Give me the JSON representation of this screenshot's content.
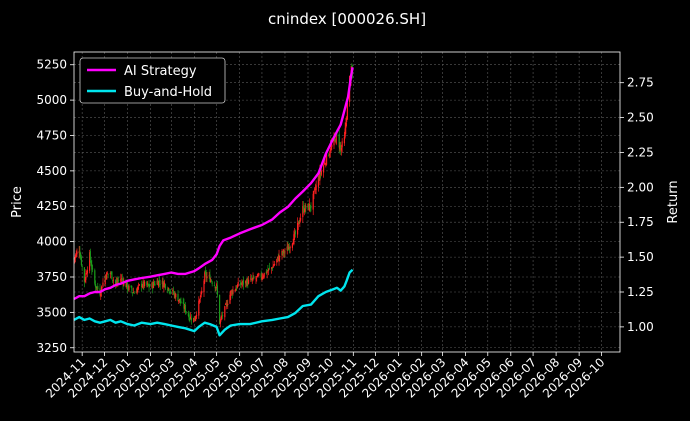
{
  "chart_data": {
    "type": "line",
    "title": "cnindex [000026.SH]",
    "ylabel": "Price",
    "y2label": "Return",
    "grid": true,
    "legend_position": "top-left",
    "price_ylim": [
      3220,
      5340
    ],
    "return_ylim": [
      0.82,
      2.97
    ],
    "price_ticks": [
      3250,
      3500,
      3750,
      4000,
      4250,
      4500,
      4750,
      5000,
      5250
    ],
    "price_tick_labels": [
      "3250",
      "3500",
      "3750",
      "4000",
      "4250",
      "4500",
      "4750",
      "5000",
      "5250"
    ],
    "return_ticks": [
      1.0,
      1.25,
      1.5,
      1.75,
      2.0,
      2.25,
      2.5,
      2.75
    ],
    "return_tick_labels": [
      "1.00",
      "1.25",
      "1.50",
      "1.75",
      "2.00",
      "2.25",
      "2.50",
      "2.75"
    ],
    "x_tick_labels": [
      "2024-11",
      "2024-12",
      "2025-01",
      "2025-02",
      "2025-03",
      "2025-04",
      "2025-05",
      "2025-06",
      "2025-07",
      "2025-08",
      "2025-09",
      "2025-10",
      "2025-11",
      "2025-12",
      "2026-01",
      "2026-02",
      "2026-03",
      "2026-04",
      "2026-05",
      "2026-06",
      "2026-07",
      "2026-08",
      "2026-09",
      "2026-10"
    ],
    "x_range": [
      "2024-10-21",
      "2026-10-26"
    ],
    "candle_up_color": "#ff2020",
    "candle_down_color": "#1a9a1a",
    "price_anchors": [
      [
        "2024-10-21",
        3880
      ],
      [
        "2024-10-28",
        3950
      ],
      [
        "2024-11-04",
        3720
      ],
      [
        "2024-11-11",
        3900
      ],
      [
        "2024-11-18",
        3700
      ],
      [
        "2024-11-25",
        3640
      ],
      [
        "2024-12-02",
        3760
      ],
      [
        "2024-12-09",
        3780
      ],
      [
        "2024-12-16",
        3700
      ],
      [
        "2024-12-23",
        3740
      ],
      [
        "2025-01-01",
        3680
      ],
      [
        "2025-01-10",
        3640
      ],
      [
        "2025-01-20",
        3700
      ],
      [
        "2025-02-01",
        3680
      ],
      [
        "2025-02-10",
        3720
      ],
      [
        "2025-02-20",
        3700
      ],
      [
        "2025-03-01",
        3650
      ],
      [
        "2025-03-10",
        3600
      ],
      [
        "2025-03-20",
        3520
      ],
      [
        "2025-03-25",
        3470
      ],
      [
        "2025-04-01",
        3450
      ],
      [
        "2025-04-07",
        3560
      ],
      [
        "2025-04-11",
        3640
      ],
      [
        "2025-04-15",
        3760
      ],
      [
        "2025-04-22",
        3740
      ],
      [
        "2025-05-01",
        3680
      ],
      [
        "2025-05-05",
        3430
      ],
      [
        "2025-05-12",
        3520
      ],
      [
        "2025-05-20",
        3640
      ],
      [
        "2025-06-01",
        3700
      ],
      [
        "2025-06-15",
        3720
      ],
      [
        "2025-07-01",
        3760
      ],
      [
        "2025-07-15",
        3820
      ],
      [
        "2025-07-25",
        3900
      ],
      [
        "2025-08-05",
        3950
      ],
      [
        "2025-08-15",
        4050
      ],
      [
        "2025-08-25",
        4230
      ],
      [
        "2025-09-05",
        4250
      ],
      [
        "2025-09-15",
        4450
      ],
      [
        "2025-09-25",
        4580
      ],
      [
        "2025-10-05",
        4700
      ],
      [
        "2025-10-10",
        4750
      ],
      [
        "2025-10-15",
        4650
      ],
      [
        "2025-10-20",
        4720
      ],
      [
        "2025-10-23",
        4900
      ],
      [
        "2025-10-27",
        5150
      ],
      [
        "2025-10-31",
        5200
      ]
    ],
    "series": [
      {
        "name": "AI Strategy",
        "color": "#ff00ff",
        "axis": "right",
        "points": [
          [
            "2024-10-21",
            1.2
          ],
          [
            "2024-10-28",
            1.22
          ],
          [
            "2024-11-04",
            1.22
          ],
          [
            "2024-11-11",
            1.24
          ],
          [
            "2024-11-18",
            1.25
          ],
          [
            "2024-11-25",
            1.25
          ],
          [
            "2024-12-02",
            1.27
          ],
          [
            "2024-12-09",
            1.28
          ],
          [
            "2024-12-16",
            1.3
          ],
          [
            "2024-12-23",
            1.31
          ],
          [
            "2025-01-01",
            1.33
          ],
          [
            "2025-01-10",
            1.34
          ],
          [
            "2025-01-20",
            1.35
          ],
          [
            "2025-02-01",
            1.36
          ],
          [
            "2025-02-10",
            1.37
          ],
          [
            "2025-02-20",
            1.38
          ],
          [
            "2025-03-01",
            1.39
          ],
          [
            "2025-03-10",
            1.38
          ],
          [
            "2025-03-20",
            1.38
          ],
          [
            "2025-04-01",
            1.4
          ],
          [
            "2025-04-07",
            1.42
          ],
          [
            "2025-04-15",
            1.45
          ],
          [
            "2025-04-25",
            1.48
          ],
          [
            "2025-05-01",
            1.52
          ],
          [
            "2025-05-05",
            1.58
          ],
          [
            "2025-05-10",
            1.62
          ],
          [
            "2025-05-20",
            1.64
          ],
          [
            "2025-06-01",
            1.67
          ],
          [
            "2025-06-15",
            1.7
          ],
          [
            "2025-07-01",
            1.73
          ],
          [
            "2025-07-15",
            1.77
          ],
          [
            "2025-07-25",
            1.82
          ],
          [
            "2025-08-05",
            1.86
          ],
          [
            "2025-08-15",
            1.92
          ],
          [
            "2025-08-25",
            1.97
          ],
          [
            "2025-09-05",
            2.03
          ],
          [
            "2025-09-15",
            2.1
          ],
          [
            "2025-09-25",
            2.24
          ],
          [
            "2025-10-05",
            2.35
          ],
          [
            "2025-10-10",
            2.4
          ],
          [
            "2025-10-15",
            2.45
          ],
          [
            "2025-10-20",
            2.55
          ],
          [
            "2025-10-25",
            2.65
          ],
          [
            "2025-10-29",
            2.8
          ],
          [
            "2025-10-31",
            2.86
          ]
        ]
      },
      {
        "name": "Buy-and-Hold",
        "color": "#00e5ee",
        "axis": "right",
        "points": [
          [
            "2024-10-21",
            1.05
          ],
          [
            "2024-10-28",
            1.07
          ],
          [
            "2024-11-04",
            1.05
          ],
          [
            "2024-11-11",
            1.06
          ],
          [
            "2024-11-18",
            1.04
          ],
          [
            "2024-11-25",
            1.03
          ],
          [
            "2024-12-02",
            1.04
          ],
          [
            "2024-12-09",
            1.05
          ],
          [
            "2024-12-16",
            1.03
          ],
          [
            "2024-12-23",
            1.04
          ],
          [
            "2025-01-01",
            1.02
          ],
          [
            "2025-01-10",
            1.01
          ],
          [
            "2025-01-20",
            1.03
          ],
          [
            "2025-02-01",
            1.02
          ],
          [
            "2025-02-10",
            1.03
          ],
          [
            "2025-02-20",
            1.02
          ],
          [
            "2025-03-01",
            1.01
          ],
          [
            "2025-03-10",
            1.0
          ],
          [
            "2025-03-20",
            0.99
          ],
          [
            "2025-04-01",
            0.97
          ],
          [
            "2025-04-07",
            1.0
          ],
          [
            "2025-04-15",
            1.03
          ],
          [
            "2025-04-22",
            1.02
          ],
          [
            "2025-05-01",
            1.0
          ],
          [
            "2025-05-05",
            0.94
          ],
          [
            "2025-05-12",
            0.98
          ],
          [
            "2025-05-20",
            1.01
          ],
          [
            "2025-06-01",
            1.02
          ],
          [
            "2025-06-15",
            1.02
          ],
          [
            "2025-07-01",
            1.04
          ],
          [
            "2025-07-15",
            1.05
          ],
          [
            "2025-07-25",
            1.06
          ],
          [
            "2025-08-05",
            1.07
          ],
          [
            "2025-08-15",
            1.1
          ],
          [
            "2025-08-25",
            1.15
          ],
          [
            "2025-09-05",
            1.16
          ],
          [
            "2025-09-15",
            1.22
          ],
          [
            "2025-09-25",
            1.25
          ],
          [
            "2025-10-05",
            1.27
          ],
          [
            "2025-10-10",
            1.28
          ],
          [
            "2025-10-15",
            1.26
          ],
          [
            "2025-10-20",
            1.29
          ],
          [
            "2025-10-23",
            1.33
          ],
          [
            "2025-10-27",
            1.39
          ],
          [
            "2025-10-31",
            1.41
          ]
        ]
      }
    ]
  }
}
